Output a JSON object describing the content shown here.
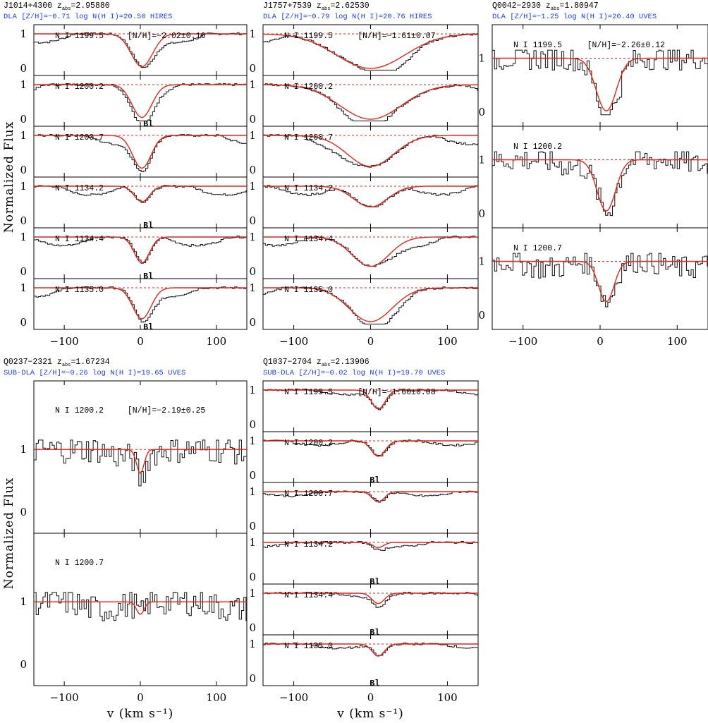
{
  "chart_data": {
    "type": "line",
    "xaxis": {
      "label": "v (km s⁻¹)",
      "range": [
        -140,
        140
      ],
      "ticks": [
        -100,
        0,
        100
      ]
    },
    "ylabel": "Normalized Flux",
    "colors": {
      "data": "#111111",
      "model": "#e8231a",
      "subtitle": "#1a3cff"
    },
    "panels": [
      {
        "id": "J1014",
        "title": "J1014+4300  z",
        "zsub": "abs",
        "zval": "=2.95880",
        "subtitle": "DLA [Z/H]=−0.71 log N(H I)=20.50 HIRES",
        "abundance": "[N/H]=−2.02±0.16",
        "lines": [
          {
            "label": "N I 1199.5",
            "center": 2,
            "depth": 0.95,
            "width": 14,
            "blend": ""
          },
          {
            "label": "N I 1200.2",
            "center": 2,
            "depth": 0.95,
            "width": 13,
            "blend": "Bl"
          },
          {
            "label": "N I 1200.7",
            "center": 2,
            "depth": 0.95,
            "width": 12,
            "blend": ""
          },
          {
            "label": "N I 1134.2",
            "center": 2,
            "depth": 0.45,
            "width": 10,
            "blend": "Bl"
          },
          {
            "label": "N I 1134.4",
            "center": 2,
            "depth": 0.75,
            "width": 10,
            "blend": "Bl"
          },
          {
            "label": "N I 1135.0",
            "center": 2,
            "depth": 0.9,
            "width": 12,
            "blend": "Bl"
          }
        ]
      },
      {
        "id": "J1757",
        "title": "J1757+7539  z",
        "zsub": "abs",
        "zval": "=2.62530",
        "subtitle": "DLA [Z/H]=−0.79 log N(H I)=20.76 HIRES",
        "abundance": "[N/H]=−1.61±0.07",
        "lines": [
          {
            "label": "N I 1199.5",
            "center": 0,
            "depth": 1.0,
            "width": 45,
            "blend": ""
          },
          {
            "label": "N I 1200.2",
            "center": 0,
            "depth": 1.0,
            "width": 40,
            "blend": ""
          },
          {
            "label": "N I 1200.7",
            "center": 0,
            "depth": 0.9,
            "width": 30,
            "blend": ""
          },
          {
            "label": "N I 1134.2",
            "center": 0,
            "depth": 0.6,
            "width": 22,
            "blend": ""
          },
          {
            "label": "N I 1134.4",
            "center": 0,
            "depth": 0.85,
            "width": 24,
            "blend": ""
          },
          {
            "label": "N I 1135.0",
            "center": 0,
            "depth": 0.98,
            "width": 28,
            "blend": ""
          }
        ]
      },
      {
        "id": "Q0042",
        "title": "Q0042−2930  z",
        "zsub": "abs",
        "zval": "=1.80947",
        "subtitle": "DLA [Z/H]=−1.25 log N(H I)=20.40 UVES",
        "abundance": "[N/H]=−2.26±0.12",
        "lines": [
          {
            "label": "N I 1199.5",
            "center": 8,
            "depth": 0.98,
            "width": 13,
            "blend": ""
          },
          {
            "label": "N I 1200.2",
            "center": 8,
            "depth": 0.95,
            "width": 12,
            "blend": ""
          },
          {
            "label": "N I 1200.7",
            "center": 8,
            "depth": 0.75,
            "width": 10,
            "blend": ""
          }
        ]
      },
      {
        "id": "Q0237",
        "title": "Q0237−2321  z",
        "zsub": "abs",
        "zval": "=1.67234",
        "subtitle": "SUB-DLA [Z/H]=−0.26 log N(H I)=19.65 UVES",
        "abundance": "[N/H]=−2.19±0.25",
        "lines": [
          {
            "label": "N I 1200.2",
            "center": 0,
            "depth": 0.38,
            "width": 5,
            "blend": ""
          },
          {
            "label": "N I 1200.7",
            "center": 0,
            "depth": 0.2,
            "width": 5,
            "blend": ""
          }
        ]
      },
      {
        "id": "Q1037",
        "title": "Q1037−2704  z",
        "zsub": "abs",
        "zval": "=2.13906",
        "subtitle": "SUB-DLA [Z/H]=−0.02 log N(H I)=19.70 UVES",
        "abundance": "[N/H]=−1.60±0.08",
        "lines": [
          {
            "label": "N I 1199.5",
            "center": 10,
            "depth": 0.55,
            "width": 9,
            "blend": ""
          },
          {
            "label": "N I 1200.2",
            "center": 10,
            "depth": 0.45,
            "width": 9,
            "blend": "Bl"
          },
          {
            "label": "N I 1200.7",
            "center": 10,
            "depth": 0.3,
            "width": 8,
            "blend": ""
          },
          {
            "label": "N I 1134.2",
            "center": 10,
            "depth": 0.15,
            "width": 7,
            "blend": "Bl"
          },
          {
            "label": "N I 1134.4",
            "center": 10,
            "depth": 0.3,
            "width": 8,
            "blend": "Bl"
          },
          {
            "label": "N I 1135.0",
            "center": 10,
            "depth": 0.35,
            "width": 8,
            "blend": "Bl"
          }
        ]
      }
    ]
  }
}
